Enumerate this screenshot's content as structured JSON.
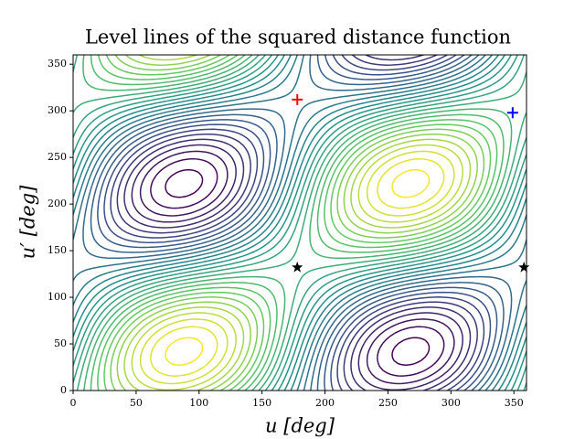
{
  "chart_data": {
    "type": "contour",
    "title": "Level lines of the squared distance function",
    "xlabel": "u [deg]",
    "ylabel": "u′ [deg]",
    "xlim": [
      0,
      360
    ],
    "ylim": [
      0,
      360
    ],
    "xticks": [
      0,
      50,
      100,
      150,
      200,
      250,
      300,
      350
    ],
    "yticks": [
      0,
      50,
      100,
      150,
      200,
      250,
      300,
      350
    ],
    "series": [
      {
        "marker": "plus",
        "color": "#ff0000",
        "x": [
          178
        ],
        "y": [
          312
        ]
      },
      {
        "marker": "plus",
        "color": "#0000ff",
        "x": [
          349
        ],
        "y": [
          298
        ]
      },
      {
        "marker": "star",
        "color": "#000000",
        "x": [
          178,
          358
        ],
        "y": [
          132,
          132
        ]
      }
    ]
  }
}
